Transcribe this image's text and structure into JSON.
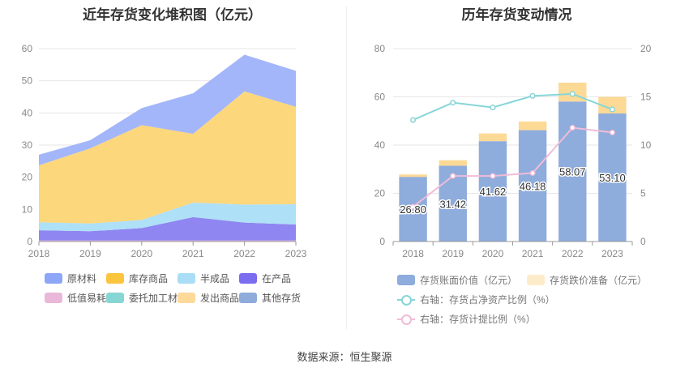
{
  "chart_data": [
    {
      "type": "area",
      "title": "近年存货变化堆积图（亿元）",
      "x": [
        "2018",
        "2019",
        "2020",
        "2021",
        "2022",
        "2023"
      ],
      "ylim": [
        0,
        60
      ],
      "yticks": [
        "0",
        "10",
        "20",
        "30",
        "40",
        "50",
        "60"
      ],
      "stacked": true,
      "series": [
        {
          "name": "低值易耗品",
          "color": "#e9b8d8",
          "values": [
            0.3,
            0.3,
            0.3,
            0.3,
            0.3,
            0.3
          ]
        },
        {
          "name": "在产品",
          "color": "#8f86f2",
          "values": [
            3.2,
            2.9,
            3.9,
            7.3,
            5.6,
            5.0
          ]
        },
        {
          "name": "半成品",
          "color": "#aee0f7",
          "values": [
            2.5,
            2.4,
            2.5,
            4.5,
            5.6,
            6.3
          ]
        },
        {
          "name": "库存商品",
          "color": "#fdd77c",
          "values": [
            17.7,
            23.4,
            29.5,
            21.4,
            35.2,
            30.3
          ]
        },
        {
          "name": "原材料",
          "color": "#a2b6f9",
          "values": [
            3.3,
            2.5,
            5.3,
            12.6,
            11.4,
            11.2
          ]
        }
      ],
      "legend": [
        {
          "name": "原材料",
          "color": "#8ea6f8"
        },
        {
          "name": "库存商品",
          "color": "#fbc53e"
        },
        {
          "name": "半成品",
          "color": "#a9def6"
        },
        {
          "name": "在产品",
          "color": "#7b6cf0"
        },
        {
          "name": "低值易耗品",
          "color": "#e9b8d8"
        },
        {
          "name": "委托加工材料",
          "color": "#86d7d3"
        },
        {
          "name": "发出商品",
          "color": "#fdd99a"
        },
        {
          "name": "其他存货",
          "color": "#8fabdc"
        }
      ]
    },
    {
      "type": "bar",
      "title": "历年存货变动情况",
      "categories": [
        "2018",
        "2019",
        "2020",
        "2021",
        "2022",
        "2023"
      ],
      "ylim": [
        0,
        80
      ],
      "yticks": [
        "0",
        "20",
        "40",
        "60",
        "80"
      ],
      "y2lim": [
        0,
        20
      ],
      "y2ticks": [
        "0",
        "5",
        "10",
        "15",
        "20"
      ],
      "series": [
        {
          "name": "存货账面价值（亿元）",
          "color": "#8eacdc",
          "values": [
            26.8,
            31.42,
            41.62,
            46.18,
            58.07,
            53.1
          ],
          "labels": [
            "26.80",
            "31.42",
            "41.62",
            "46.18",
            "58.07",
            "53.10"
          ]
        },
        {
          "name": "存货跌价准备（亿元）",
          "color": "#fcd995",
          "values": [
            1.0,
            2.3,
            3.2,
            3.6,
            7.8,
            6.9
          ]
        },
        {
          "name": "右轴：存货占净资产比例（%）",
          "color": "#86d5d8",
          "axis": "right",
          "values": [
            12.6,
            14.4,
            13.9,
            15.1,
            15.3,
            13.7
          ]
        },
        {
          "name": "右轴：存货计提比例（%）",
          "color": "#f0bcd8",
          "axis": "right",
          "values": [
            3.6,
            6.8,
            6.8,
            7.1,
            11.8,
            11.3
          ]
        }
      ],
      "legend_bg": {
        "存货跌价准备（亿元）": "#feebc9"
      }
    }
  ],
  "footer": "数据来源：恒生聚源"
}
